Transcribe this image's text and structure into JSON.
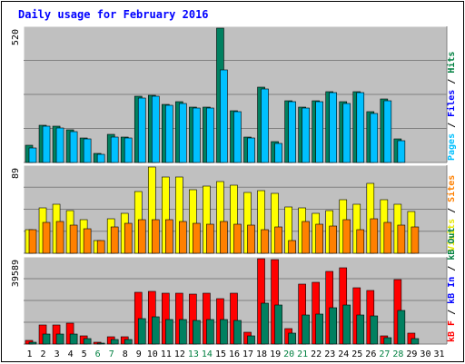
{
  "chart_data": {
    "type": "bar",
    "title": "Daily usage for February 2016",
    "categories": [
      "1",
      "2",
      "3",
      "4",
      "5",
      "6",
      "7",
      "8",
      "9",
      "10",
      "11",
      "12",
      "13",
      "14",
      "15",
      "16",
      "17",
      "18",
      "19",
      "20",
      "21",
      "22",
      "23",
      "24",
      "25",
      "26",
      "27",
      "28",
      "29",
      "30",
      "31"
    ],
    "weekend_days": [
      "6",
      "7",
      "13",
      "14",
      "20",
      "21",
      "27",
      "28"
    ],
    "panels": [
      {
        "name": "pages-files-hits",
        "max_label": "520",
        "ylim": [
          0,
          520
        ],
        "axis_labels": [
          {
            "text": "Pages",
            "color": "#00c0ff"
          },
          {
            "text": "Files",
            "color": "#0000ff"
          },
          {
            "text": "Hits",
            "color": "#008040"
          }
        ],
        "series": [
          {
            "name": "Hits",
            "color": "#008060",
            "values": [
              65,
              145,
              140,
              125,
              95,
              35,
              110,
              100,
              255,
              260,
              225,
              235,
              215,
              215,
              520,
              200,
              100,
              290,
              80,
              240,
              215,
              240,
              275,
              235,
              275,
              195,
              245,
              90,
              0,
              0,
              0
            ]
          },
          {
            "name": "Files",
            "color": "#00c0ff",
            "values": [
              55,
              140,
              135,
              120,
              90,
              30,
              100,
              95,
              250,
              255,
              220,
              230,
              210,
              210,
              360,
              195,
              95,
              285,
              75,
              235,
              210,
              235,
              270,
              230,
              270,
              190,
              240,
              85,
              0,
              0,
              0
            ]
          }
        ]
      },
      {
        "name": "visits-sites",
        "max_label": "89",
        "ylim": [
          0,
          89
        ],
        "axis_labels": [
          {
            "text": "Visits",
            "color": "#e8e800"
          },
          {
            "text": "Sites",
            "color": "#ff8000"
          }
        ],
        "series": [
          {
            "name": "Visits",
            "color": "#ffff00",
            "values": [
              24,
              47,
              51,
              44,
              35,
              13,
              36,
              41,
              64,
              89,
              79,
              79,
              66,
              69,
              74,
              70,
              63,
              65,
              62,
              48,
              47,
              41,
              44,
              55,
              51,
              72,
              55,
              51,
              43,
              0,
              0
            ]
          },
          {
            "name": "Sites",
            "color": "#ff8000",
            "values": [
              24,
              32,
              33,
              29,
              25,
              13,
              27,
              31,
              35,
              35,
              35,
              33,
              31,
              30,
              33,
              30,
              29,
              24,
              27,
              13,
              33,
              30,
              28,
              35,
              24,
              36,
              32,
              29,
              27,
              0,
              0
            ]
          }
        ]
      },
      {
        "name": "kbf-kbin-kbout",
        "max_label": "39589",
        "ylim": [
          0,
          39589
        ],
        "axis_labels": [
          {
            "text": "kB F",
            "color": "#ff0000"
          },
          {
            "text": "kB In",
            "color": "#0000ff"
          },
          {
            "text": "kB Out",
            "color": "#008040"
          }
        ],
        "series": [
          {
            "name": "kB F",
            "color": "#ff0000",
            "values": [
              1500,
              9000,
              9000,
              9500,
              4000,
              1000,
              3500,
              3500,
              24000,
              24500,
              23500,
              23500,
              23000,
              23500,
              21000,
              23500,
              5500,
              39589,
              39000,
              7000,
              28000,
              28500,
              33500,
              35500,
              26000,
              25000,
              4000,
              30000,
              5000,
              0,
              0
            ]
          },
          {
            "name": "kB Out",
            "color": "#008060",
            "values": [
              1000,
              4500,
              4500,
              4500,
              2500,
              500,
              2000,
              2000,
              12000,
              12500,
              11500,
              11500,
              11000,
              11500,
              11500,
              11000,
              4000,
              19000,
              18000,
              5000,
              13500,
              14000,
              17000,
              18000,
              13500,
              13000,
              3000,
              15500,
              2500,
              0,
              0
            ]
          }
        ]
      }
    ]
  }
}
